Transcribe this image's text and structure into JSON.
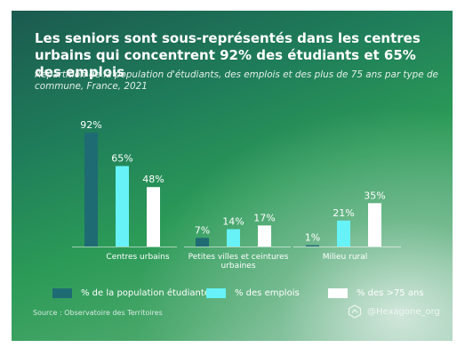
{
  "title": "Les seniors sont sous-représentés dans les centres urbains qui concentrent 92% des étudiants et 65% des emplois",
  "subtitle": "Répartition de la population d'étudiants, des emplois et des plus de 75 ans par type de commune, France, 2021",
  "source": "Source : Observatoire des Territoires",
  "brand": "@Hexagone_org",
  "icons": {
    "brand": "hexagon-logo-icon"
  },
  "colors": {
    "etudiants": "#1e6b73",
    "emplois": "#66f2f7",
    "seniors": "#ffffff"
  },
  "chart_data": {
    "type": "bar",
    "categories": [
      "Centres urbains",
      "Petites villes et ceintures urbaines",
      "Milieu rural"
    ],
    "series": [
      {
        "name": "% de la population étudiante",
        "values": [
          92,
          7,
          1
        ],
        "labels": [
          "92%",
          "7%",
          "1%"
        ]
      },
      {
        "name": "% des emplois",
        "values": [
          65,
          14,
          21
        ],
        "labels": [
          "65%",
          "14%",
          "21%"
        ]
      },
      {
        "name": "% des >75 ans",
        "values": [
          48,
          17,
          35
        ],
        "labels": [
          "48%",
          "17%",
          "35%"
        ]
      }
    ],
    "ylim": [
      0,
      92
    ],
    "grid": false,
    "legend_position": "bottom"
  }
}
